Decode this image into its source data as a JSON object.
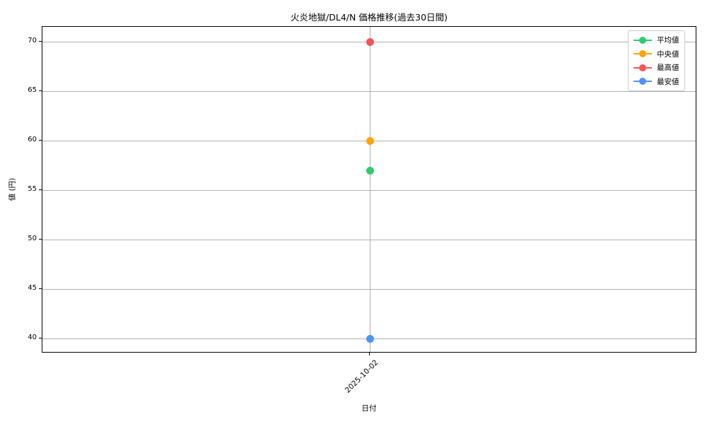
{
  "chart_data": {
    "type": "scatter",
    "title": "火炎地獄/DL4/N 価格推移(過去30日間)",
    "xlabel": "日付",
    "ylabel": "値 (円)",
    "x": [
      "2025-10-02"
    ],
    "series": [
      {
        "name": "平均値",
        "color": "#2ecc71",
        "values": [
          57
        ]
      },
      {
        "name": "中央値",
        "color": "#ffa502",
        "values": [
          60
        ]
      },
      {
        "name": "最高値",
        "color": "#f65354",
        "values": [
          70
        ]
      },
      {
        "name": "最安値",
        "color": "#4d94f7",
        "values": [
          40
        ]
      }
    ],
    "yticks": [
      40,
      45,
      50,
      55,
      60,
      65,
      70
    ],
    "ylim": [
      38.5,
      71.5
    ],
    "grid": true,
    "grid_color": "#b0b0b0",
    "spine_color": "#000000",
    "background_color": "#ffffff",
    "legend_position": "upper right",
    "legend_border_color": "#cccccc",
    "x_tick_rotation_deg": 45
  }
}
